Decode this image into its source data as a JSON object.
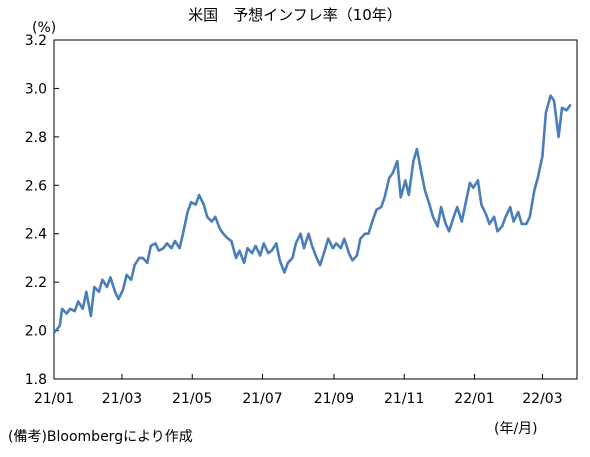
{
  "chart_data": {
    "type": "line",
    "title": "米国　予想インフレ率（10年）",
    "y_unit": "(%)",
    "x_unit": "(年/月)",
    "source_note": "(備考)Bloombergにより作成",
    "ylim": [
      1.8,
      3.2
    ],
    "yticks": [
      "1.8",
      "2.0",
      "2.2",
      "2.4",
      "2.6",
      "2.8",
      "3.0",
      "3.2"
    ],
    "xlim": [
      "2021-01-01",
      "2022-03-31"
    ],
    "xticks": [
      {
        "label": "21/01",
        "date": "2021-01-01"
      },
      {
        "label": "21/03",
        "date": "2021-03-01"
      },
      {
        "label": "21/05",
        "date": "2021-05-01"
      },
      {
        "label": "21/07",
        "date": "2021-07-01"
      },
      {
        "label": "21/09",
        "date": "2021-09-01"
      },
      {
        "label": "21/11",
        "date": "2021-11-01"
      },
      {
        "label": "22/01",
        "date": "2022-01-01"
      },
      {
        "label": "22/03",
        "date": "2022-03-01"
      }
    ],
    "grid": false,
    "legend": "none",
    "line_color": "#4a7ebb",
    "series": [
      {
        "name": "",
        "points": [
          [
            "2021-01-01",
            1.99
          ],
          [
            "2021-01-06",
            2.02
          ],
          [
            "2021-01-08",
            2.09
          ],
          [
            "2021-01-12",
            2.07
          ],
          [
            "2021-01-15",
            2.09
          ],
          [
            "2021-01-19",
            2.08
          ],
          [
            "2021-01-22",
            2.12
          ],
          [
            "2021-01-26",
            2.09
          ],
          [
            "2021-01-29",
            2.16
          ],
          [
            "2021-02-02",
            2.06
          ],
          [
            "2021-02-05",
            2.18
          ],
          [
            "2021-02-09",
            2.16
          ],
          [
            "2021-02-12",
            2.21
          ],
          [
            "2021-02-16",
            2.18
          ],
          [
            "2021-02-19",
            2.22
          ],
          [
            "2021-02-23",
            2.16
          ],
          [
            "2021-02-26",
            2.13
          ],
          [
            "2021-03-02",
            2.17
          ],
          [
            "2021-03-05",
            2.23
          ],
          [
            "2021-03-09",
            2.21
          ],
          [
            "2021-03-12",
            2.27
          ],
          [
            "2021-03-16",
            2.3
          ],
          [
            "2021-03-19",
            2.3
          ],
          [
            "2021-03-23",
            2.28
          ],
          [
            "2021-03-26",
            2.35
          ],
          [
            "2021-03-30",
            2.36
          ],
          [
            "2021-04-02",
            2.33
          ],
          [
            "2021-04-06",
            2.34
          ],
          [
            "2021-04-09",
            2.36
          ],
          [
            "2021-04-13",
            2.34
          ],
          [
            "2021-04-16",
            2.37
          ],
          [
            "2021-04-20",
            2.34
          ],
          [
            "2021-04-23",
            2.4
          ],
          [
            "2021-04-27",
            2.49
          ],
          [
            "2021-04-30",
            2.53
          ],
          [
            "2021-05-04",
            2.52
          ],
          [
            "2021-05-07",
            2.56
          ],
          [
            "2021-05-11",
            2.52
          ],
          [
            "2021-05-14",
            2.47
          ],
          [
            "2021-05-18",
            2.45
          ],
          [
            "2021-05-21",
            2.47
          ],
          [
            "2021-05-25",
            2.42
          ],
          [
            "2021-05-28",
            2.4
          ],
          [
            "2021-06-01",
            2.38
          ],
          [
            "2021-06-04",
            2.37
          ],
          [
            "2021-06-08",
            2.3
          ],
          [
            "2021-06-11",
            2.33
          ],
          [
            "2021-06-15",
            2.28
          ],
          [
            "2021-06-18",
            2.34
          ],
          [
            "2021-06-22",
            2.32
          ],
          [
            "2021-06-25",
            2.35
          ],
          [
            "2021-06-29",
            2.31
          ],
          [
            "2021-07-02",
            2.36
          ],
          [
            "2021-07-06",
            2.32
          ],
          [
            "2021-07-09",
            2.33
          ],
          [
            "2021-07-13",
            2.36
          ],
          [
            "2021-07-16",
            2.29
          ],
          [
            "2021-07-20",
            2.24
          ],
          [
            "2021-07-23",
            2.28
          ],
          [
            "2021-07-27",
            2.3
          ],
          [
            "2021-07-30",
            2.36
          ],
          [
            "2021-08-03",
            2.4
          ],
          [
            "2021-08-06",
            2.34
          ],
          [
            "2021-08-10",
            2.4
          ],
          [
            "2021-08-13",
            2.35
          ],
          [
            "2021-08-17",
            2.3
          ],
          [
            "2021-08-20",
            2.27
          ],
          [
            "2021-08-24",
            2.33
          ],
          [
            "2021-08-27",
            2.38
          ],
          [
            "2021-08-31",
            2.34
          ],
          [
            "2021-09-03",
            2.36
          ],
          [
            "2021-09-07",
            2.34
          ],
          [
            "2021-09-10",
            2.38
          ],
          [
            "2021-09-14",
            2.32
          ],
          [
            "2021-09-17",
            2.29
          ],
          [
            "2021-09-21",
            2.31
          ],
          [
            "2021-09-24",
            2.38
          ],
          [
            "2021-09-28",
            2.4
          ],
          [
            "2021-10-01",
            2.4
          ],
          [
            "2021-10-05",
            2.46
          ],
          [
            "2021-10-08",
            2.5
          ],
          [
            "2021-10-12",
            2.51
          ],
          [
            "2021-10-15",
            2.55
          ],
          [
            "2021-10-19",
            2.63
          ],
          [
            "2021-10-22",
            2.65
          ],
          [
            "2021-10-26",
            2.7
          ],
          [
            "2021-10-29",
            2.55
          ],
          [
            "2021-11-02",
            2.62
          ],
          [
            "2021-11-05",
            2.56
          ],
          [
            "2021-11-09",
            2.7
          ],
          [
            "2021-11-12",
            2.75
          ],
          [
            "2021-11-16",
            2.65
          ],
          [
            "2021-11-19",
            2.58
          ],
          [
            "2021-11-23",
            2.52
          ],
          [
            "2021-11-26",
            2.47
          ],
          [
            "2021-11-30",
            2.43
          ],
          [
            "2021-12-03",
            2.51
          ],
          [
            "2021-12-07",
            2.44
          ],
          [
            "2021-12-10",
            2.41
          ],
          [
            "2021-12-14",
            2.47
          ],
          [
            "2021-12-17",
            2.51
          ],
          [
            "2021-12-21",
            2.45
          ],
          [
            "2021-12-24",
            2.52
          ],
          [
            "2021-12-28",
            2.61
          ],
          [
            "2021-12-31",
            2.59
          ],
          [
            "2022-01-04",
            2.62
          ],
          [
            "2022-01-07",
            2.52
          ],
          [
            "2022-01-11",
            2.48
          ],
          [
            "2022-01-14",
            2.44
          ],
          [
            "2022-01-18",
            2.47
          ],
          [
            "2022-01-21",
            2.41
          ],
          [
            "2022-01-25",
            2.43
          ],
          [
            "2022-01-28",
            2.47
          ],
          [
            "2022-02-01",
            2.51
          ],
          [
            "2022-02-04",
            2.45
          ],
          [
            "2022-02-08",
            2.49
          ],
          [
            "2022-02-11",
            2.44
          ],
          [
            "2022-02-15",
            2.44
          ],
          [
            "2022-02-18",
            2.47
          ],
          [
            "2022-02-22",
            2.58
          ],
          [
            "2022-02-25",
            2.63
          ],
          [
            "2022-03-01",
            2.72
          ],
          [
            "2022-03-04",
            2.9
          ],
          [
            "2022-03-08",
            2.97
          ],
          [
            "2022-03-11",
            2.95
          ],
          [
            "2022-03-15",
            2.8
          ],
          [
            "2022-03-18",
            2.92
          ],
          [
            "2022-03-22",
            2.91
          ],
          [
            "2022-03-25",
            2.93
          ]
        ]
      }
    ]
  }
}
